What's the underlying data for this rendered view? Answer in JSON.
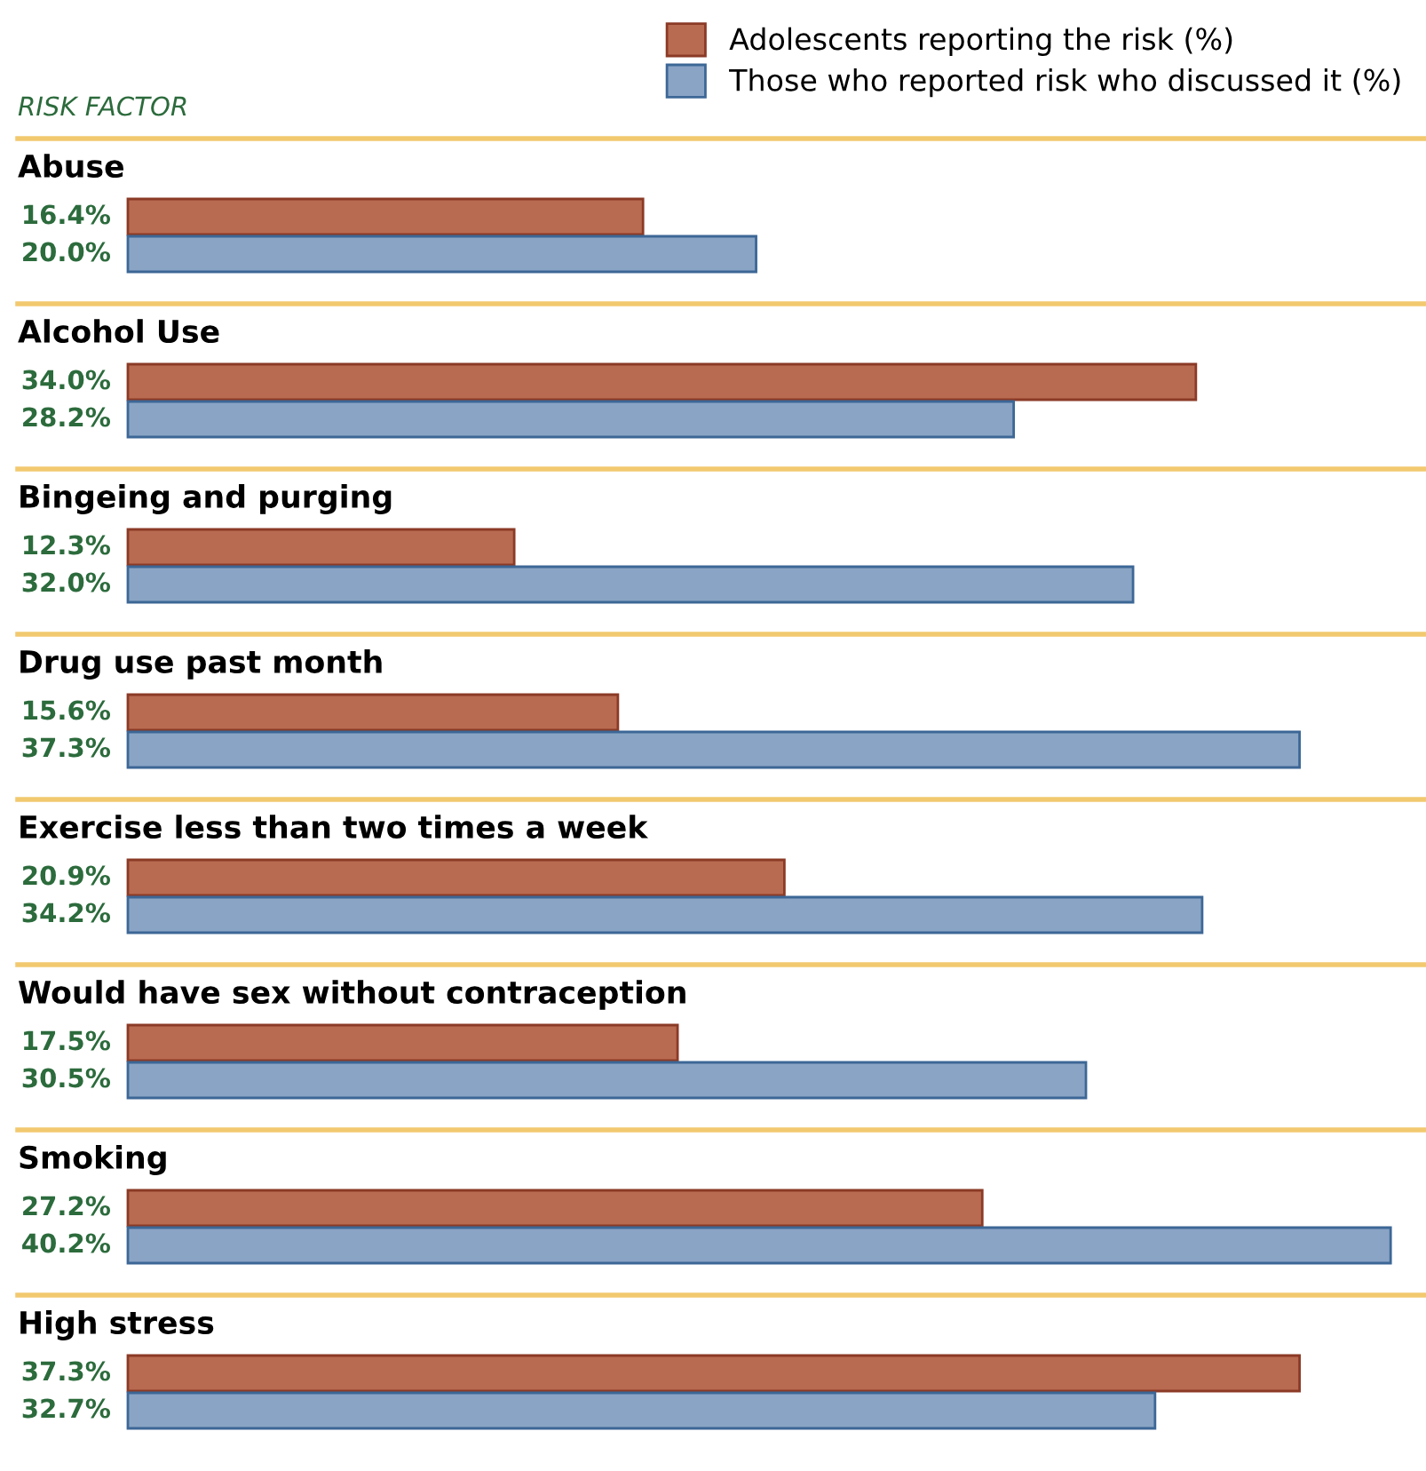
{
  "chart_data": [
    {
      "type": "bar",
      "orientation": "horizontal",
      "title": "Abuse",
      "ylabel": "RISK FACTOR",
      "categories": [
        null
      ],
      "legend": "top right",
      "series": [
        {
          "name": "Adolescents reporting the risk (%)",
          "color": "#b96b51",
          "values": [
            16.4
          ],
          "value_labels": [
            "16.4%"
          ]
        },
        {
          "name": "Those who reported risk who discussed it (%)",
          "color": "#8aa4c5",
          "values": [
            20.0
          ],
          "value_labels": [
            "20.0%"
          ]
        }
      ]
    },
    {
      "type": "bar",
      "orientation": "horizontal",
      "title": "Alcohol Use",
      "categories": [
        null
      ],
      "series": [
        {
          "color": "#b96b51",
          "values": [
            34.0
          ],
          "value_labels": [
            "34.0%"
          ]
        },
        {
          "color": "#8aa4c5",
          "values": [
            28.2
          ],
          "value_labels": [
            "28.2%"
          ]
        }
      ]
    },
    {
      "type": "bar",
      "orientation": "horizontal",
      "title": "Bingeing and purging",
      "categories": [
        null
      ],
      "series": [
        {
          "color": "#b96b51",
          "values": [
            12.3
          ],
          "value_labels": [
            "12.3%"
          ]
        },
        {
          "color": "#8aa4c5",
          "values": [
            32.0
          ],
          "value_labels": [
            "32.0%"
          ]
        }
      ]
    },
    {
      "type": "bar",
      "orientation": "horizontal",
      "title": "Drug use past month",
      "categories": [
        null
      ],
      "series": [
        {
          "color": "#b96b51",
          "values": [
            15.6
          ],
          "value_labels": [
            "15.6%"
          ]
        },
        {
          "color": "#8aa4c5",
          "values": [
            37.3
          ],
          "value_labels": [
            "37.3%"
          ]
        }
      ]
    },
    {
      "type": "bar",
      "orientation": "horizontal",
      "title": "Exercise less than two times a week",
      "categories": [
        null
      ],
      "series": [
        {
          "color": "#b96b51",
          "values": [
            20.9
          ],
          "value_labels": [
            "20.9%"
          ]
        },
        {
          "color": "#8aa4c5",
          "values": [
            34.2
          ],
          "value_labels": [
            "34.2%"
          ]
        }
      ]
    },
    {
      "type": "bar",
      "orientation": "horizontal",
      "title": "Would have sex without contraception",
      "categories": [
        null
      ],
      "series": [
        {
          "color": "#b96b51",
          "values": [
            17.5
          ],
          "value_labels": [
            "17.5%"
          ]
        },
        {
          "color": "#8aa4c5",
          "values": [
            30.5
          ],
          "value_labels": [
            "30.5%"
          ]
        }
      ]
    },
    {
      "type": "bar",
      "orientation": "horizontal",
      "title": "Smoking",
      "categories": [
        null
      ],
      "series": [
        {
          "color": "#b96b51",
          "values": [
            27.2
          ],
          "value_labels": [
            "27.2%"
          ]
        },
        {
          "color": "#8aa4c5",
          "values": [
            40.2
          ],
          "value_labels": [
            "40.2%"
          ]
        }
      ]
    },
    {
      "type": "bar",
      "orientation": "horizontal",
      "title": "High stress",
      "categories": [
        null
      ],
      "series": [
        {
          "color": "#b96b51",
          "values": [
            37.3
          ],
          "value_labels": [
            "37.3%"
          ]
        },
        {
          "color": "#8aa4c5",
          "values": [
            32.7
          ],
          "value_labels": [
            "32.7%"
          ]
        }
      ]
    }
  ]
}
